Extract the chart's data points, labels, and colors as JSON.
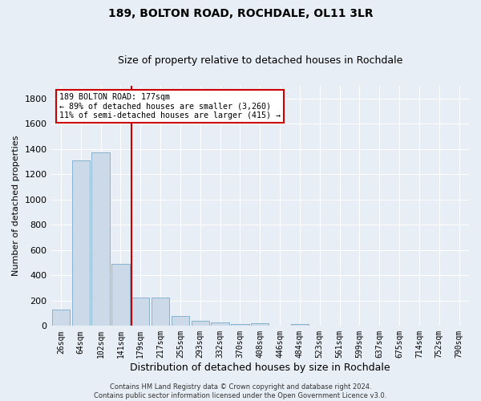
{
  "title": "189, BOLTON ROAD, ROCHDALE, OL11 3LR",
  "subtitle": "Size of property relative to detached houses in Rochdale",
  "xlabel": "Distribution of detached houses by size in Rochdale",
  "ylabel": "Number of detached properties",
  "categories": [
    "26sqm",
    "64sqm",
    "102sqm",
    "141sqm",
    "179sqm",
    "217sqm",
    "255sqm",
    "293sqm",
    "332sqm",
    "370sqm",
    "408sqm",
    "446sqm",
    "484sqm",
    "523sqm",
    "561sqm",
    "599sqm",
    "637sqm",
    "675sqm",
    "714sqm",
    "752sqm",
    "790sqm"
  ],
  "values": [
    130,
    1310,
    1370,
    490,
    225,
    225,
    80,
    40,
    25,
    15,
    20,
    0,
    15,
    0,
    0,
    0,
    0,
    0,
    0,
    0,
    0
  ],
  "bar_color": "#ccd9e8",
  "bar_edge_color": "#7aaac8",
  "ylim": [
    0,
    1900
  ],
  "yticks": [
    0,
    200,
    400,
    600,
    800,
    1000,
    1200,
    1400,
    1600,
    1800
  ],
  "red_line_index": 4,
  "annotation_line1": "189 BOLTON ROAD: 177sqm",
  "annotation_line2": "← 89% of detached houses are smaller (3,260)",
  "annotation_line3": "11% of semi-detached houses are larger (415) →",
  "annotation_box_color": "#ffffff",
  "annotation_box_edge": "#cc0000",
  "red_line_color": "#cc0000",
  "footnote": "Contains HM Land Registry data © Crown copyright and database right 2024.\nContains public sector information licensed under the Open Government Licence v3.0.",
  "bg_color": "#e8eef5",
  "grid_color": "#ffffff",
  "title_fontsize": 10,
  "subtitle_fontsize": 9,
  "axis_label_fontsize": 8,
  "tick_fontsize": 7,
  "footnote_fontsize": 6
}
